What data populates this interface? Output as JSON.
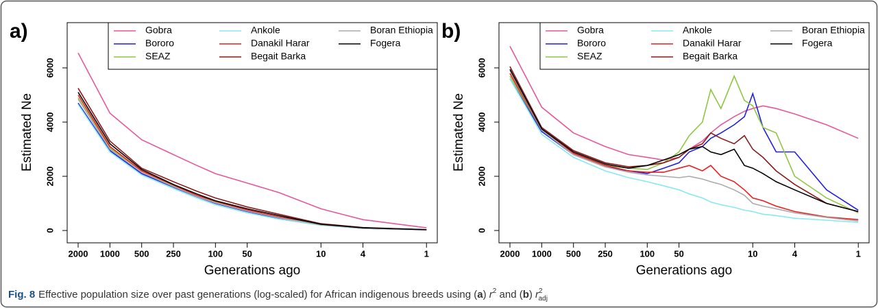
{
  "chart_data": [
    {
      "type": "line",
      "panel_label": "a)",
      "ylabel": "Estimated Ne",
      "xlabel": "Generations ago",
      "xscale": "log",
      "xlim": [
        2541,
        0.79
      ],
      "ylim": [
        -455,
        7670
      ],
      "xticks": [
        2000,
        1000,
        500,
        250,
        100,
        50,
        10,
        4,
        1
      ],
      "yticks": [
        0,
        2000,
        4000,
        6000
      ],
      "grid": false,
      "legend": "top right",
      "legend_columns": 3,
      "x": [
        2000,
        1000,
        500,
        250,
        150,
        100,
        50,
        25,
        10,
        4,
        1
      ],
      "series": [
        {
          "name": "Gobra",
          "color": "#e8559c",
          "values": [
            6550,
            4330,
            3350,
            2800,
            2400,
            2100,
            1750,
            1400,
            800,
            400,
            100
          ]
        },
        {
          "name": "Bororo",
          "color": "#1f1fe0",
          "values": [
            4700,
            2950,
            2100,
            1600,
            1250,
            1000,
            700,
            450,
            200,
            80,
            20
          ]
        },
        {
          "name": "SEAZ",
          "color": "#8dc63f",
          "values": [
            4900,
            3050,
            2150,
            1650,
            1280,
            1050,
            730,
            480,
            210,
            90,
            25
          ]
        },
        {
          "name": "Ankole",
          "color": "#86e8f0",
          "values": [
            4650,
            2900,
            2050,
            1550,
            1200,
            950,
            650,
            420,
            190,
            80,
            20
          ]
        },
        {
          "name": "Danakil Harar",
          "color": "#ee1c1c",
          "values": [
            5000,
            3100,
            2200,
            1680,
            1300,
            1080,
            760,
            500,
            220,
            95,
            25
          ]
        },
        {
          "name": "Begait Barka",
          "color": "#8b1a1a",
          "values": [
            5250,
            3300,
            2300,
            1800,
            1450,
            1200,
            870,
            600,
            250,
            110,
            30
          ]
        },
        {
          "name": "Boran Ethiopia",
          "color": "#aaaaaa",
          "values": [
            4850,
            3000,
            2150,
            1620,
            1260,
            1020,
            720,
            470,
            210,
            85,
            25
          ]
        },
        {
          "name": "Fogera",
          "color": "#000000",
          "values": [
            5100,
            3200,
            2250,
            1700,
            1350,
            1100,
            800,
            550,
            230,
            100,
            30
          ]
        }
      ]
    },
    {
      "type": "line",
      "panel_label": "b)",
      "ylabel": "Estimated Ne",
      "xlabel": "Generations ago",
      "xscale": "log",
      "xlim": [
        2541,
        0.79
      ],
      "ylim": [
        -455,
        7670
      ],
      "xticks": [
        2000,
        1000,
        500,
        250,
        100,
        50,
        10,
        4,
        1
      ],
      "yticks": [
        0,
        2000,
        4000,
        6000
      ],
      "grid": false,
      "legend": "top right",
      "legend_columns": 3,
      "x": [
        2000,
        1000,
        500,
        250,
        150,
        100,
        70,
        50,
        40,
        30,
        25,
        20,
        15,
        12,
        10,
        8,
        6,
        4,
        2,
        1
      ],
      "series": [
        {
          "name": "Gobra",
          "color": "#e8559c",
          "values": [
            6800,
            4550,
            3600,
            3100,
            2800,
            2700,
            2600,
            2700,
            3000,
            3300,
            3600,
            3900,
            4200,
            4400,
            4500,
            4600,
            4500,
            4300,
            3900,
            3400
          ]
        },
        {
          "name": "Bororo",
          "color": "#1f1fe0",
          "values": [
            5600,
            3650,
            2800,
            2350,
            2200,
            2100,
            2300,
            2500,
            2900,
            3100,
            3400,
            3600,
            3900,
            4200,
            5050,
            3800,
            2900,
            2900,
            1500,
            750
          ]
        },
        {
          "name": "SEAZ",
          "color": "#8dc63f",
          "values": [
            5700,
            3700,
            2850,
            2400,
            2300,
            2250,
            2500,
            2900,
            3500,
            4000,
            5200,
            4500,
            5700,
            4800,
            4600,
            3800,
            3600,
            2000,
            1200,
            650
          ]
        },
        {
          "name": "Ankole",
          "color": "#86e8f0",
          "values": [
            5600,
            3550,
            2700,
            2200,
            1950,
            1800,
            1650,
            1500,
            1350,
            1200,
            1050,
            950,
            850,
            750,
            700,
            600,
            550,
            450,
            380,
            300
          ]
        },
        {
          "name": "Danakil Harar",
          "color": "#ee1c1c",
          "values": [
            5800,
            3700,
            2850,
            2400,
            2200,
            2150,
            2150,
            2300,
            2400,
            2200,
            2400,
            2000,
            1800,
            1500,
            1200,
            1100,
            900,
            700,
            500,
            400
          ]
        },
        {
          "name": "Begait Barka",
          "color": "#8b1a1a",
          "values": [
            6050,
            3800,
            2950,
            2500,
            2350,
            2400,
            2500,
            2700,
            3000,
            3200,
            3600,
            3400,
            3200,
            3500,
            3000,
            2700,
            2200,
            1700,
            1000,
            700
          ]
        },
        {
          "name": "Boran Ethiopia",
          "color": "#aaaaaa",
          "values": [
            5900,
            3700,
            2800,
            2350,
            2150,
            2050,
            2000,
            1950,
            2000,
            1900,
            1800,
            1700,
            1500,
            1300,
            1000,
            900,
            800,
            650,
            480,
            350
          ]
        },
        {
          "name": "Fogera",
          "color": "#000000",
          "values": [
            5950,
            3750,
            2900,
            2450,
            2300,
            2400,
            2600,
            2800,
            3000,
            3100,
            2900,
            2800,
            3000,
            2400,
            2300,
            2100,
            1800,
            1500,
            1000,
            700
          ]
        }
      ]
    }
  ],
  "caption": {
    "label": "Fig. 8",
    "segments": [
      "Effective population size over past generations (log-scaled) for African indigenous breeds using (",
      "a",
      ") ",
      "r",
      "2",
      " and (",
      "b",
      ") ",
      "r",
      "2",
      "adj"
    ]
  }
}
